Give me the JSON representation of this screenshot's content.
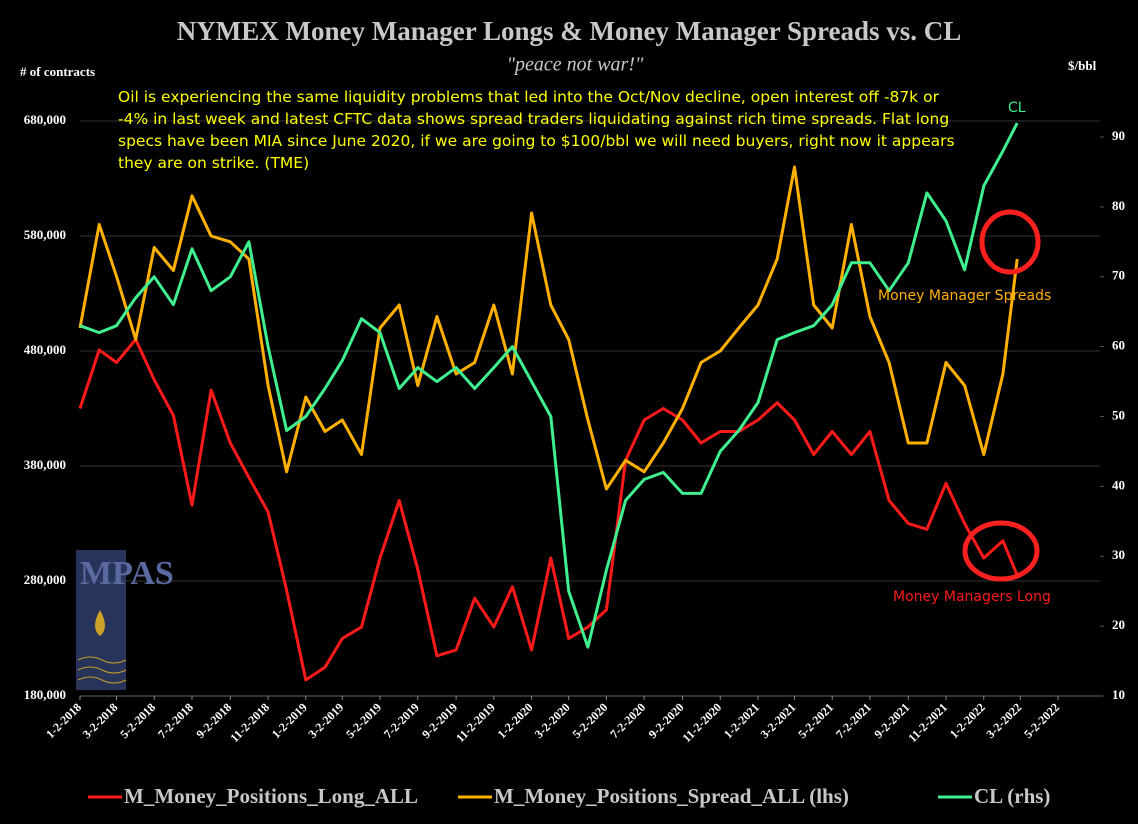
{
  "chart_data": {
    "type": "line",
    "title": "NYMEX Money Manager Longs & Money Manager Spreads vs. CL",
    "subtitle": "\"peace not war!\"",
    "ylabel": "# of contracts",
    "y2label": "$/bbl",
    "annotation": "Oil is experiencing the same liquidity problems that led into the Oct/Nov decline, open interest off -87k or -4% in last week and latest CFTC data shows spread traders liquidating against rich time spreads. Flat long specs have been MIA since June 2020, if we are going to $100/bbl we will need buyers, right now it appears they are on strike. (TME)",
    "labels": [
      "CL",
      "Money Manager Spreads",
      "Money Managers Long"
    ],
    "logo": "MPAS",
    "x": [
      "1-2-2018",
      "2-2-2018",
      "3-2-2018",
      "4-2-2018",
      "5-2-2018",
      "6-2-2018",
      "7-2-2018",
      "8-2-2018",
      "9-2-2018",
      "10-2-2018",
      "11-2-2018",
      "12-2-2018",
      "1-2-2019",
      "2-2-2019",
      "3-2-2019",
      "4-2-2019",
      "5-2-2019",
      "6-2-2019",
      "7-2-2019",
      "8-2-2019",
      "9-2-2019",
      "10-2-2019",
      "11-2-2019",
      "12-2-2019",
      "1-2-2020",
      "2-2-2020",
      "3-2-2020",
      "4-2-2020",
      "5-2-2020",
      "6-2-2020",
      "7-2-2020",
      "8-2-2020",
      "9-2-2020",
      "10-2-2020",
      "11-2-2020",
      "12-2-2020",
      "1-2-2021",
      "2-2-2021",
      "3-2-2021",
      "4-2-2021",
      "5-2-2021",
      "6-2-2021",
      "7-2-2021",
      "8-2-2021",
      "9-2-2021",
      "10-2-2021",
      "11-2-2021",
      "12-2-2021",
      "1-2-2022",
      "2-2-2022",
      "2-25-2022"
    ],
    "series": [
      {
        "name": "M_Money_Positions_Long_ALL",
        "color": "#ff1a1a",
        "axis": "y",
        "values": [
          430000,
          481000,
          470000,
          490000,
          455000,
          424000,
          346000,
          446000,
          400000,
          370000,
          340000,
          272000,
          194000,
          205000,
          230000,
          240000,
          300000,
          350000,
          290000,
          215000,
          220000,
          265000,
          240000,
          275000,
          220000,
          300000,
          230000,
          240000,
          255000,
          385000,
          420000,
          430000,
          420000,
          400000,
          410000,
          410000,
          420000,
          435000,
          420000,
          390000,
          410000,
          390000,
          410000,
          350000,
          330000,
          325000,
          365000,
          330000,
          300000,
          315000,
          285000
        ]
      },
      {
        "name": "M_Money_Positions_Spread_ALL (lhs)",
        "color": "#ffb000",
        "axis": "y",
        "values": [
          500000,
          590000,
          545000,
          490000,
          570000,
          550000,
          615000,
          580000,
          575000,
          560000,
          450000,
          375000,
          440000,
          410000,
          420000,
          390000,
          500000,
          520000,
          450000,
          510000,
          460000,
          470000,
          520000,
          460000,
          600000,
          520000,
          490000,
          420000,
          360000,
          385000,
          375000,
          400000,
          430000,
          470000,
          480000,
          500000,
          520000,
          560000,
          640000,
          520000,
          500000,
          590000,
          510000,
          470000,
          400000,
          400000,
          470000,
          450000,
          390000,
          460000,
          560000
        ]
      },
      {
        "name": "CL (rhs)",
        "color": "#40f090",
        "axis": "y2",
        "values": [
          63,
          62,
          63,
          67,
          70,
          66,
          74,
          68,
          70,
          75,
          60,
          48,
          50,
          54,
          58,
          64,
          62,
          54,
          57,
          55,
          57,
          54,
          57,
          60,
          55,
          50,
          25,
          17,
          28,
          38,
          41,
          42,
          39,
          39,
          45,
          48,
          52,
          61,
          62,
          63,
          66,
          72,
          72,
          68,
          72,
          82,
          78,
          71,
          83,
          88,
          92
        ]
      }
    ],
    "ylim": [
      180000,
      680000
    ],
    "yticks": [
      {
        "value": 180000,
        "label": "180,000"
      },
      {
        "value": 280000,
        "label": "280,000"
      },
      {
        "value": 380000,
        "label": "380,000"
      },
      {
        "value": 480000,
        "label": "480,000"
      },
      {
        "value": 580000,
        "label": "580,000"
      },
      {
        "value": 680000,
        "label": "680,000"
      }
    ],
    "y2lim": [
      10,
      95
    ],
    "y2ticks": [
      10,
      20,
      30,
      40,
      50,
      60,
      70,
      80,
      90
    ],
    "xticks": [
      "1-2-2018",
      "3-2-2018",
      "5-2-2018",
      "7-2-2018",
      "9-2-2018",
      "11-2-2018",
      "1-2-2019",
      "3-2-2019",
      "5-2-2019",
      "7-2-2019",
      "9-2-2019",
      "11-2-2019",
      "1-2-2020",
      "3-2-2020",
      "5-2-2020",
      "7-2-2020",
      "9-2-2020",
      "11-2-2020",
      "1-2-2021",
      "3-2-2021",
      "5-2-2021",
      "7-2-2021",
      "9-2-2021",
      "11-2-2021",
      "1-2-2022",
      "3-2-2022",
      "5-2-2022"
    ],
    "grid": true
  }
}
